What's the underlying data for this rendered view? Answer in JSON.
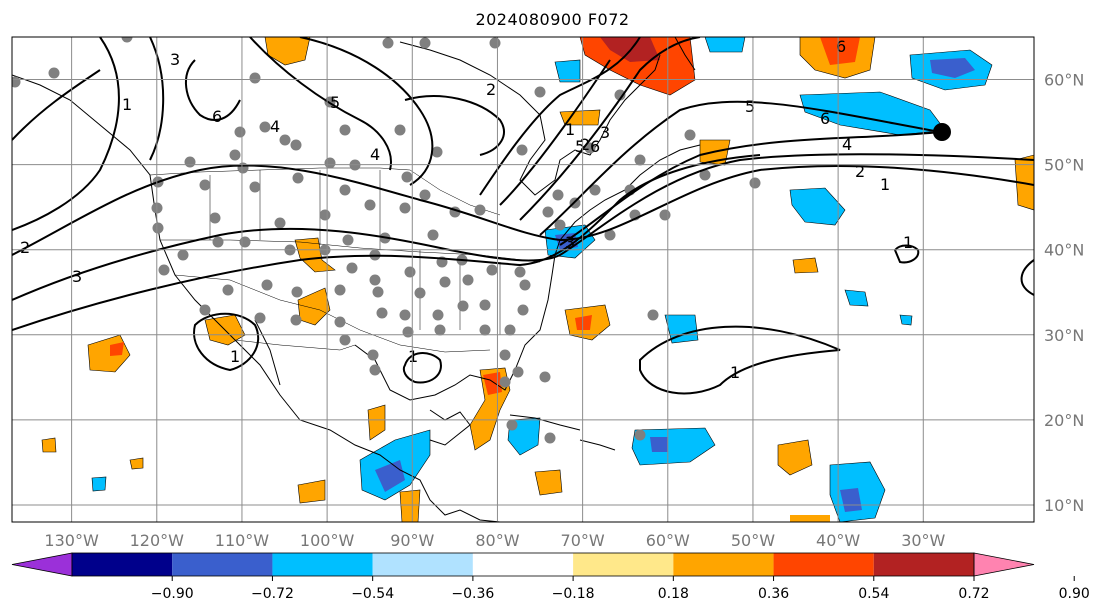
{
  "title": "2024080900 F072",
  "map": {
    "lon_min": -137,
    "lon_max": -17,
    "lat_min": 8,
    "lat_max": 65,
    "lat_labels": [
      "10°N",
      "20°N",
      "30°N",
      "40°N",
      "50°N",
      "60°N"
    ],
    "lat_values": [
      10,
      20,
      30,
      40,
      50,
      60
    ],
    "lon_labels": [
      "130°W",
      "120°W",
      "110°W",
      "100°W",
      "90°W",
      "80°W",
      "70°W",
      "60°W",
      "50°W",
      "40°W",
      "30°W"
    ],
    "lon_values": [
      -130,
      -120,
      -110,
      -100,
      -90,
      -80,
      -70,
      -60,
      -50,
      -40,
      -30
    ],
    "colorbar": {
      "labels": [
        "−0.90",
        "−0.72",
        "−0.54",
        "−0.36",
        "−0.18",
        "0.18",
        "0.36",
        "0.54",
        "0.72",
        "0.90"
      ],
      "colors": [
        "#9b30d9",
        "#00008b",
        "#3a5fcd",
        "#00bfff",
        "#b0e2ff",
        "#ffffff",
        "#ffe88a",
        "#ffa500",
        "#ff4500",
        "#b22222",
        "#ff83b0"
      ],
      "extend_low_color": "#9b30d9",
      "extend_high_color": "#ff83b0"
    },
    "contour_labels": [
      "1",
      "2",
      "3",
      "4",
      "5",
      "6",
      "1",
      "2",
      "3",
      "4",
      "5",
      "6",
      "1",
      "2",
      "3",
      "1",
      "1",
      "1",
      "1",
      "2",
      "3",
      "4",
      "5",
      "6",
      "6"
    ],
    "marker_label": "black-circle-marker"
  }
}
